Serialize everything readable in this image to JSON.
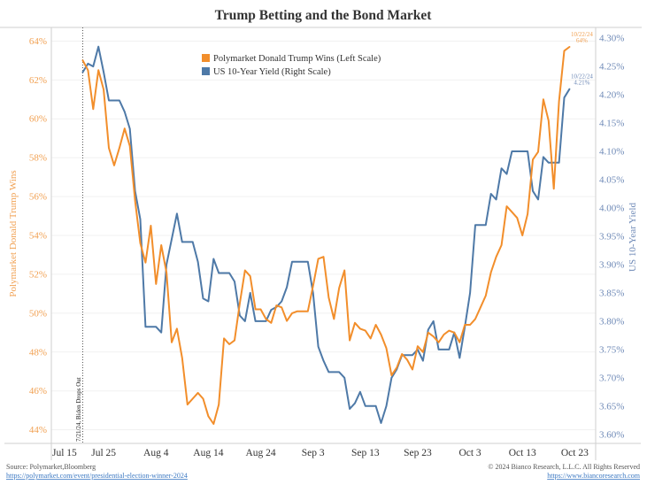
{
  "title": "Trump Betting and the Bond Market",
  "footer": {
    "source": "Source: Polymarket,Bloomberg",
    "source_link": "https://polymarket.com/event/presidential-election-winner-2024",
    "copyright": "© 2024 Bianco Research, L.L.C. All Rights Reserved",
    "site_link": "https://www.biancoresearch.com"
  },
  "chart_data": {
    "type": "line",
    "title": "Trump Betting and the Bond Market",
    "xlabel": "",
    "ylabel_left": "Polymarket Donald Trump Wins",
    "ylabel_right": "US 10-Year Yield",
    "ylabel_left_color": "#f1a153",
    "ylabel_right_color": "#6f8ab7",
    "grid": "horizontal",
    "legend_position": "top-center",
    "xlim": [
      "2024-07-15",
      "2024-10-27"
    ],
    "ylim_left": [
      43.3,
      64.7
    ],
    "ylim_right": [
      3.584,
      4.319
    ],
    "x_ticks": [
      "Jul 15",
      "Jul 25",
      "Aug 4",
      "Aug 14",
      "Aug 24",
      "Sep 3",
      "Sep 13",
      "Sep 23",
      "Oct 3",
      "Oct 13",
      "Oct 23"
    ],
    "x_tick_dates": [
      "2024-07-15",
      "2024-07-25",
      "2024-08-04",
      "2024-08-14",
      "2024-08-24",
      "2024-09-03",
      "2024-09-13",
      "2024-09-23",
      "2024-10-03",
      "2024-10-13",
      "2024-10-23"
    ],
    "y_ticks_left": [
      64,
      62,
      60,
      58,
      56,
      54,
      52,
      50,
      48,
      46,
      44
    ],
    "y_tick_labels_left": [
      "64%",
      "62%",
      "60%",
      "58%",
      "56%",
      "54%",
      "52%",
      "50%",
      "48%",
      "46%",
      "44%"
    ],
    "y_ticks_right": [
      4.3,
      4.25,
      4.2,
      4.15,
      4.1,
      4.05,
      4.0,
      3.95,
      3.9,
      3.85,
      3.8,
      3.75,
      3.7,
      3.65,
      3.6
    ],
    "y_tick_labels_right": [
      "4.30%",
      "4.25%",
      "4.20%",
      "4.15%",
      "4.10%",
      "4.05%",
      "4.00%",
      "3.95%",
      "3.90%",
      "3.85%",
      "3.80%",
      "3.75%",
      "3.70%",
      "3.65%",
      "3.60%"
    ],
    "x": [
      "2024-07-21",
      "2024-07-22",
      "2024-07-23",
      "2024-07-24",
      "2024-07-25",
      "2024-07-26",
      "2024-07-27",
      "2024-07-28",
      "2024-07-29",
      "2024-07-30",
      "2024-07-31",
      "2024-08-01",
      "2024-08-02",
      "2024-08-03",
      "2024-08-04",
      "2024-08-05",
      "2024-08-06",
      "2024-08-07",
      "2024-08-08",
      "2024-08-09",
      "2024-08-10",
      "2024-08-11",
      "2024-08-12",
      "2024-08-13",
      "2024-08-14",
      "2024-08-15",
      "2024-08-16",
      "2024-08-17",
      "2024-08-18",
      "2024-08-19",
      "2024-08-20",
      "2024-08-21",
      "2024-08-22",
      "2024-08-23",
      "2024-08-24",
      "2024-08-25",
      "2024-08-26",
      "2024-08-27",
      "2024-08-28",
      "2024-08-29",
      "2024-08-30",
      "2024-08-31",
      "2024-09-01",
      "2024-09-02",
      "2024-09-03",
      "2024-09-04",
      "2024-09-05",
      "2024-09-06",
      "2024-09-07",
      "2024-09-08",
      "2024-09-09",
      "2024-09-10",
      "2024-09-11",
      "2024-09-12",
      "2024-09-13",
      "2024-09-14",
      "2024-09-15",
      "2024-09-16",
      "2024-09-17",
      "2024-09-18",
      "2024-09-19",
      "2024-09-20",
      "2024-09-21",
      "2024-09-22",
      "2024-09-23",
      "2024-09-24",
      "2024-09-25",
      "2024-09-26",
      "2024-09-27",
      "2024-09-28",
      "2024-09-29",
      "2024-09-30",
      "2024-10-01",
      "2024-10-02",
      "2024-10-03",
      "2024-10-04",
      "2024-10-05",
      "2024-10-06",
      "2024-10-07",
      "2024-10-08",
      "2024-10-09",
      "2024-10-10",
      "2024-10-11",
      "2024-10-12",
      "2024-10-13",
      "2024-10-14",
      "2024-10-15",
      "2024-10-16",
      "2024-10-17",
      "2024-10-18",
      "2024-10-19",
      "2024-10-20",
      "2024-10-21",
      "2024-10-22"
    ],
    "series": [
      {
        "name": "Polymarket Donald Trump Wins (Left Scale)",
        "axis": "left",
        "unit": "%",
        "color": "#f28e2b",
        "values": [
          63.0,
          62.5,
          60.5,
          62.5,
          61.5,
          58.5,
          57.6,
          58.5,
          59.5,
          58.6,
          55.8,
          53.6,
          52.6,
          54.5,
          51.5,
          53.5,
          52.1,
          48.5,
          49.2,
          47.7,
          45.3,
          45.6,
          45.9,
          45.6,
          44.7,
          44.3,
          45.3,
          48.7,
          48.4,
          48.6,
          50.5,
          52.2,
          51.9,
          50.2,
          50.2,
          49.7,
          49.5,
          50.4,
          50.3,
          49.6,
          50.0,
          50.1,
          50.1,
          50.1,
          51.4,
          52.8,
          52.9,
          50.8,
          49.7,
          51.3,
          52.2,
          48.6,
          49.5,
          49.2,
          49.1,
          48.7,
          49.4,
          48.9,
          48.2,
          46.8,
          47.2,
          47.9,
          47.6,
          47.1,
          48.3,
          48.0,
          49.0,
          48.8,
          48.5,
          48.9,
          49.1,
          49.0,
          48.5,
          49.4,
          49.4,
          49.7,
          50.3,
          50.9,
          52.1,
          52.9,
          53.5,
          55.5,
          55.2,
          54.9,
          54.0,
          55.1,
          57.9,
          58.3,
          61.0,
          59.9,
          56.4,
          60.9,
          63.5,
          63.7
        ]
      },
      {
        "name": "US 10-Year Yield (Right Scale)",
        "axis": "right",
        "unit": "%",
        "color": "#4e79a7",
        "values": [
          4.24,
          4.255,
          4.25,
          4.285,
          4.24,
          4.19,
          4.19,
          4.19,
          4.17,
          4.14,
          4.03,
          3.98,
          3.79,
          3.79,
          3.79,
          3.78,
          3.9,
          3.945,
          3.99,
          3.94,
          3.94,
          3.94,
          3.905,
          3.84,
          3.835,
          3.91,
          3.885,
          3.885,
          3.885,
          3.87,
          3.81,
          3.8,
          3.85,
          3.8,
          3.8,
          3.8,
          3.82,
          3.825,
          3.835,
          3.86,
          3.905,
          3.905,
          3.905,
          3.905,
          3.85,
          3.755,
          3.73,
          3.71,
          3.71,
          3.71,
          3.7,
          3.645,
          3.655,
          3.675,
          3.65,
          3.65,
          3.65,
          3.62,
          3.65,
          3.7,
          3.715,
          3.74,
          3.74,
          3.74,
          3.75,
          3.73,
          3.785,
          3.8,
          3.75,
          3.75,
          3.75,
          3.78,
          3.735,
          3.79,
          3.85,
          3.97,
          3.97,
          3.97,
          4.025,
          4.015,
          4.07,
          4.06,
          4.1,
          4.1,
          4.1,
          4.1,
          4.03,
          4.015,
          4.09,
          4.08,
          4.08,
          4.08,
          4.195,
          4.21
        ]
      }
    ],
    "annotations": [
      {
        "type": "vertical-dotted-line",
        "x": "2024-07-21",
        "text": "7/21/24, Biden Drops Out"
      },
      {
        "type": "end-label",
        "series": 0,
        "x": "2024-10-22",
        "date_text": "10/22/24",
        "value_text": "64%"
      },
      {
        "type": "end-label",
        "series": 1,
        "x": "2024-10-22",
        "date_text": "10/22/24",
        "value_text": "4.21%"
      }
    ]
  }
}
